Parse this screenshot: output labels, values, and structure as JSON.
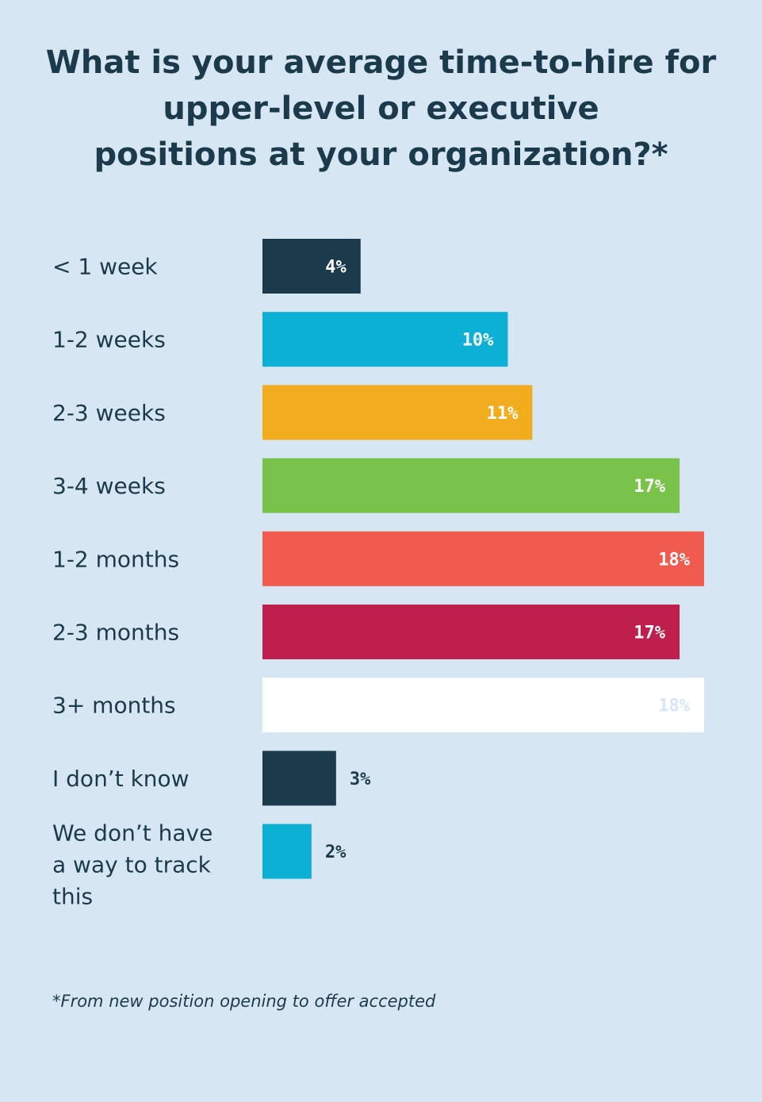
{
  "chart_data": {
    "type": "bar",
    "orientation": "horizontal",
    "title_lines": [
      "What is your average time-to-hire for",
      "upper-level or executive",
      "positions at your organization?*"
    ],
    "categories": [
      [
        "< 1 week"
      ],
      [
        "1-2 weeks"
      ],
      [
        "2-3 weeks"
      ],
      [
        "3-4 weeks"
      ],
      [
        "1-2 months"
      ],
      [
        "2-3 months"
      ],
      [
        "3+ months"
      ],
      [
        "I don’t know"
      ],
      [
        "We don’t have",
        "a way to track",
        "this"
      ]
    ],
    "values": [
      4,
      10,
      11,
      17,
      18,
      17,
      18,
      3,
      2
    ],
    "value_labels": [
      "4%",
      "10%",
      "11%",
      "17%",
      "18%",
      "17%",
      "18%",
      "3%",
      "2%"
    ],
    "colors": [
      "#1b3a4b",
      "#0bb0d4",
      "#f2ad1f",
      "#7ac34b",
      "#f05a4f",
      "#bf1f4d",
      "#ffffff",
      "#1b3a4b",
      "#0bb0d4"
    ],
    "label_inside": [
      true,
      true,
      true,
      true,
      true,
      true,
      true,
      false,
      false
    ],
    "label_colors": [
      "#ffffff",
      "#ffffff",
      "#ffffff",
      "#ffffff",
      "#ffffff",
      "#ffffff",
      "#d6e7f3",
      "#1b3a4b",
      "#1b3a4b"
    ],
    "xlim": [
      0,
      18
    ],
    "grid": false,
    "legend": "none"
  },
  "footnote": "*From new position opening to offer accepted"
}
